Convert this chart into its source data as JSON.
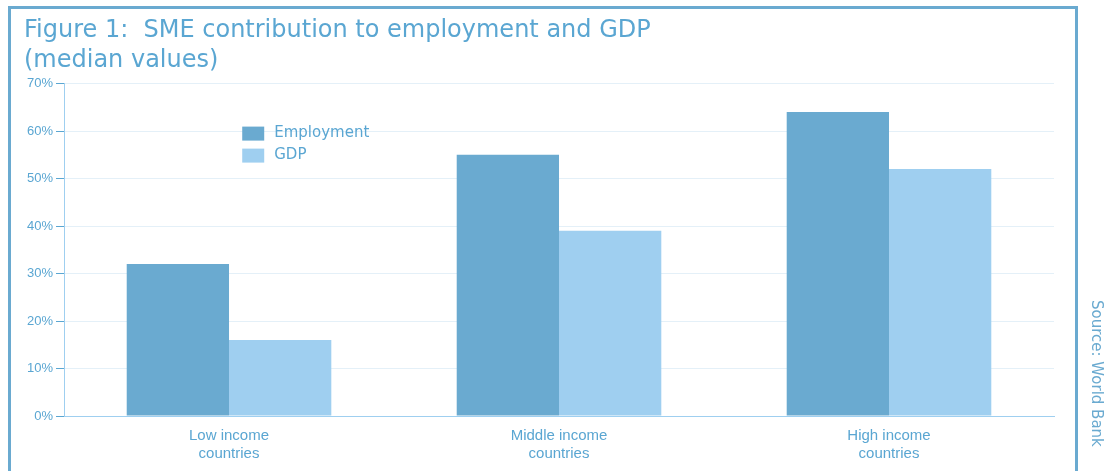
{
  "chart_data": {
    "type": "bar",
    "title": "Figure 1:  SME contribution to employment and GDP",
    "subtitle": "(median values)",
    "categories": [
      "Low income countries",
      "Middle income countries",
      "High income countries"
    ],
    "series": [
      {
        "name": "Employment",
        "color": "#6aaad0",
        "values": [
          32,
          55,
          64
        ]
      },
      {
        "name": "GDP",
        "color": "#9fcff0",
        "values": [
          16,
          39,
          52
        ]
      }
    ],
    "ylim": [
      0,
      70
    ],
    "yticks": [
      {
        "value": 0,
        "label": "0%"
      },
      {
        "value": 10,
        "label": "10%"
      },
      {
        "value": 20,
        "label": "20%"
      },
      {
        "value": 30,
        "label": "30%"
      },
      {
        "value": 40,
        "label": "40%"
      },
      {
        "value": 50,
        "label": "50%"
      },
      {
        "value": 60,
        "label": "60%"
      },
      {
        "value": 70,
        "label": "70%"
      }
    ],
    "grid": "y",
    "legend": "top left",
    "annotations": [
      "Source: World Bank"
    ]
  }
}
